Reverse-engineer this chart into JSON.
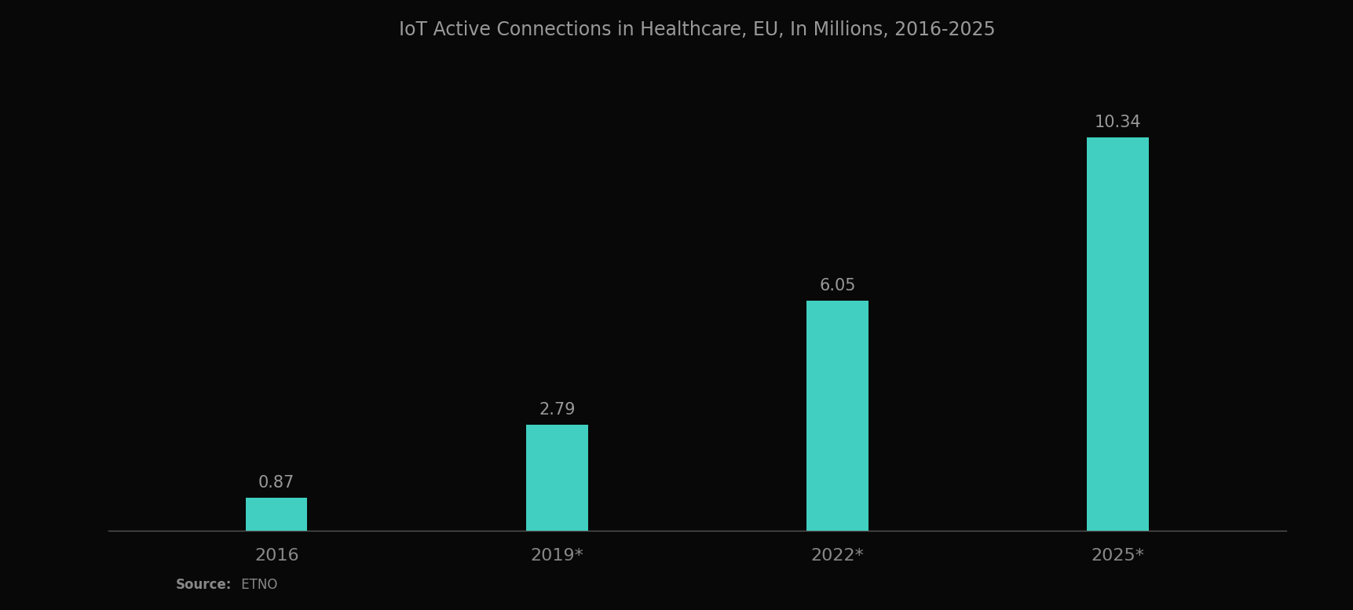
{
  "title": "IoT Active Connections in Healthcare, EU, In Millions, 2016-2025",
  "categories": [
    "2016",
    "2019*",
    "2022*",
    "2025*"
  ],
  "values": [
    0.87,
    2.79,
    6.05,
    10.34
  ],
  "bar_color": "#40CFC0",
  "background_color": "#080808",
  "title_color": "#999999",
  "label_color": "#999999",
  "tick_color": "#888888",
  "source_label_bold": "Source:",
  "source_label_normal": " ETNO",
  "bar_width": 0.22,
  "ylim": [
    0,
    12.5
  ],
  "title_fontsize": 17,
  "label_fontsize": 15,
  "tick_fontsize": 16,
  "source_fontsize": 12
}
